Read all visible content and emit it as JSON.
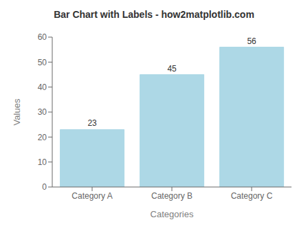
{
  "chart_data": {
    "type": "bar",
    "title": "Bar Chart with Labels - how2matplotlib.com",
    "xlabel": "Categories",
    "ylabel": "Values",
    "categories": [
      "Category A",
      "Category B",
      "Category C"
    ],
    "values": [
      23,
      45,
      56
    ],
    "color": "#add8e6",
    "ylim": [
      0,
      60
    ],
    "yticks": [
      0,
      10,
      20,
      30,
      40,
      50,
      60
    ],
    "data_labels": true
  }
}
